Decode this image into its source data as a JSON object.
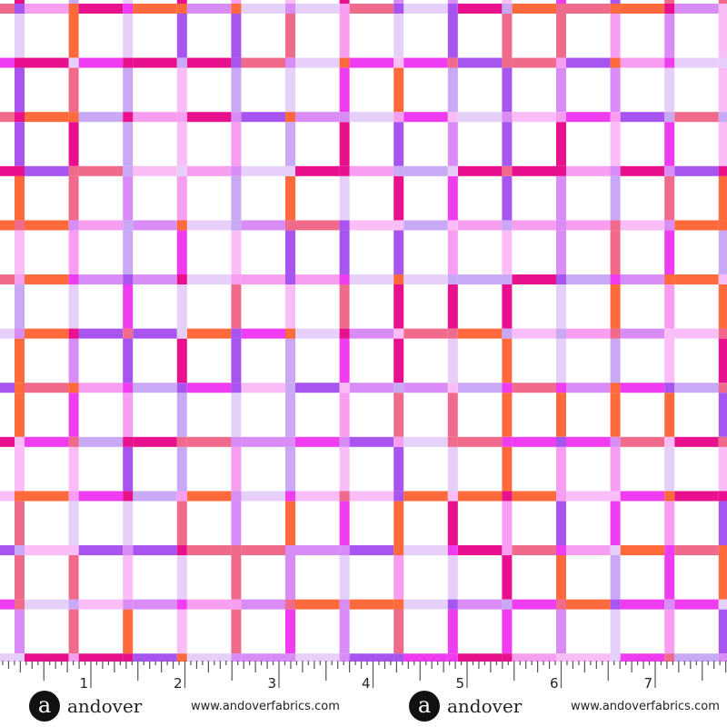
{
  "palette": [
    "#e8108c",
    "#f03cf0",
    "#a855f0",
    "#c9a8f5",
    "#f79ef0",
    "#fbbdf7",
    "#f06a8c",
    "#ff6a3c",
    "#d98cf5",
    "#e6d0fa"
  ],
  "ruler": {
    "labels": [
      "1",
      "2",
      "3",
      "4",
      "5",
      "6",
      "7"
    ],
    "unit": "inch"
  },
  "brand": [
    {
      "logo": "a",
      "name": "andover",
      "url": "www.andoverfabrics.com"
    },
    {
      "logo": "a",
      "name": "andover",
      "url": "www.andoverfabrics.com"
    }
  ]
}
